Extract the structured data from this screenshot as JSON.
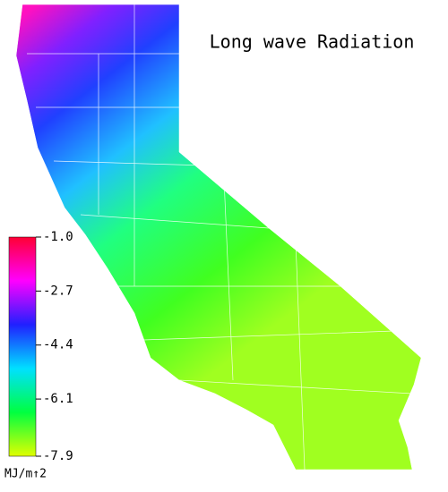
{
  "title": "Long wave Radiation",
  "legend": {
    "ticks": [
      {
        "value": -1.0,
        "label": "-1.0"
      },
      {
        "value": -2.7,
        "label": "-2.7"
      },
      {
        "value": -4.4,
        "label": "-4.4"
      },
      {
        "value": -6.1,
        "label": "-6.1"
      },
      {
        "value": -7.9,
        "label": "-7.9"
      }
    ],
    "colors": [
      "#ff0033",
      "#ff00ff",
      "#2020ff",
      "#00e0ff",
      "#00ff40",
      "#e0ff00"
    ],
    "unit": "MJ/m↑2"
  }
}
